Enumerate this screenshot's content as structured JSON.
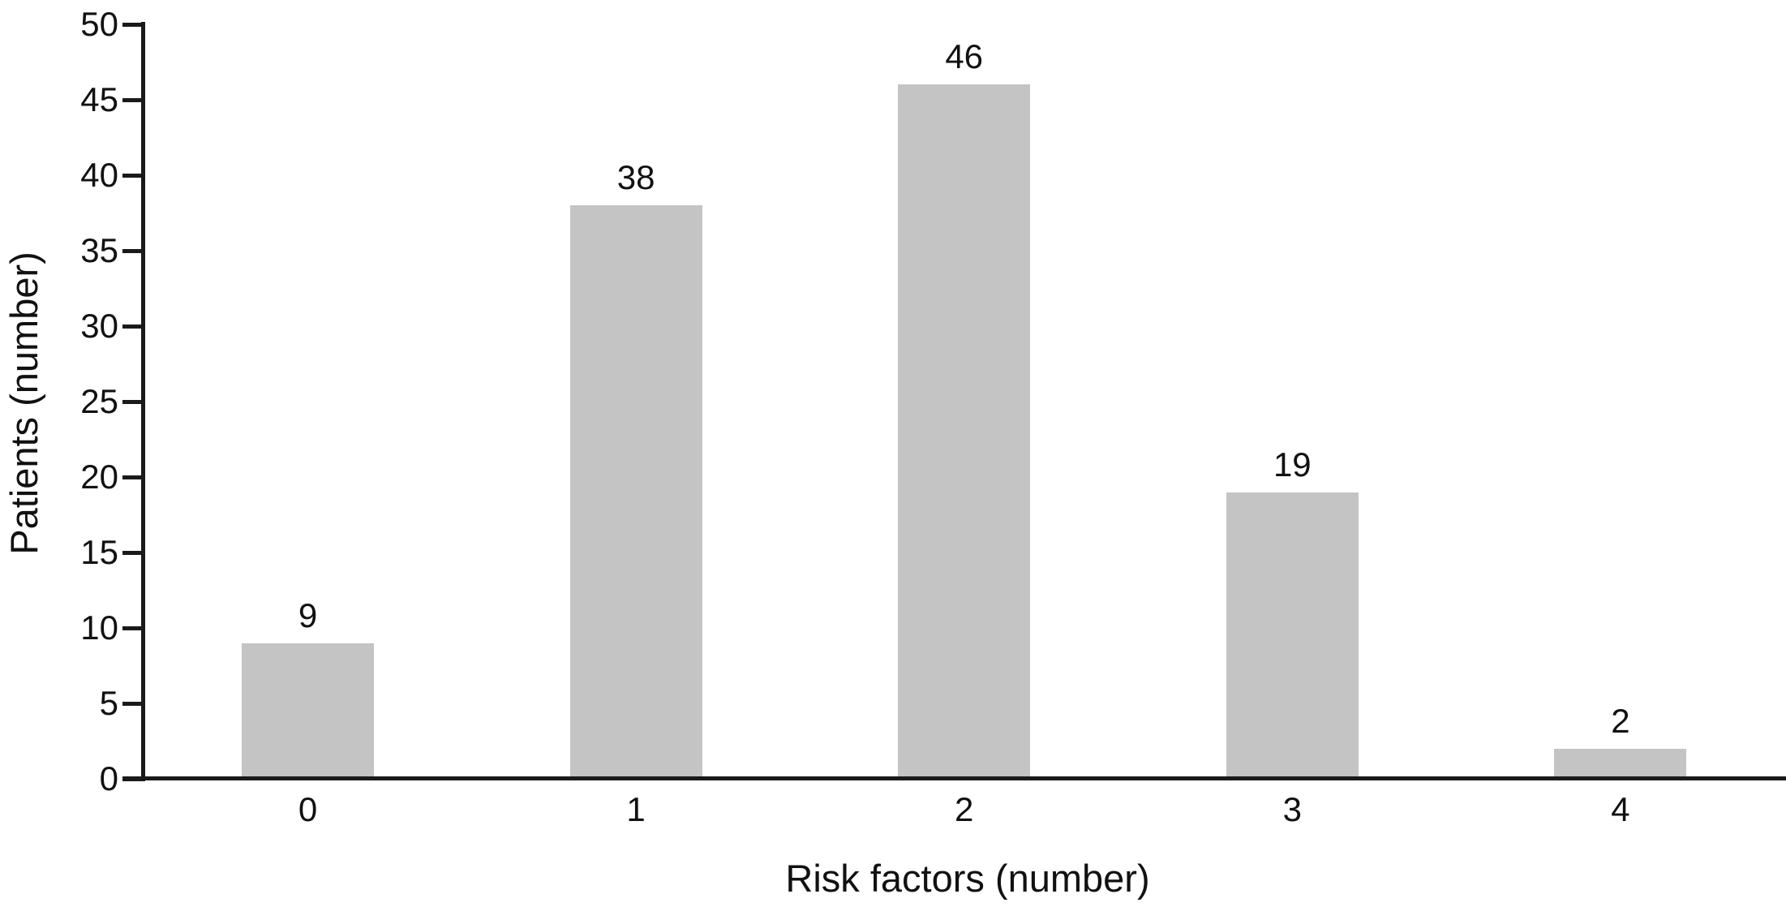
{
  "figure": {
    "background_color": "#ffffff"
  },
  "chart_data": {
    "type": "bar",
    "title": "",
    "categories": [
      "0",
      "1",
      "2",
      "3",
      "4"
    ],
    "values": [
      9,
      38,
      46,
      19,
      2
    ],
    "bar_value_labels": [
      "9",
      "38",
      "46",
      "19",
      "2"
    ],
    "xlabel": "Risk factors (number)",
    "ylabel": "Patients (number)",
    "ylim": [
      0,
      50
    ],
    "ytick_step": 5,
    "ytick_labels": [
      "0",
      "5",
      "10",
      "15",
      "20",
      "25",
      "30",
      "35",
      "40",
      "45",
      "50"
    ],
    "grid": false,
    "legend": "none",
    "data_labels_shown": true,
    "bar_color": "#c4c4c4",
    "axis_color": "#1a1a1a",
    "text_color": "#111111"
  }
}
